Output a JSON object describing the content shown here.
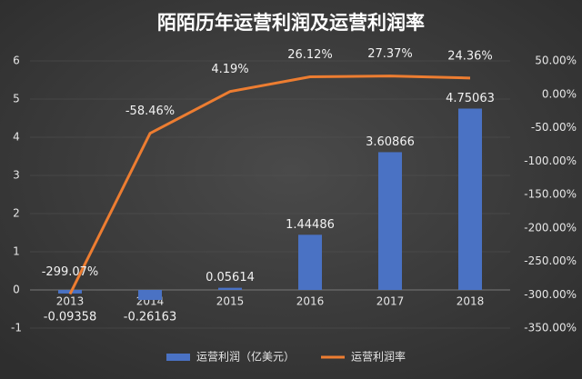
{
  "chart_data": {
    "type": "bar",
    "title": "陌陌历年运营利润及运营利润率",
    "categories": [
      "2013",
      "2014",
      "2015",
      "2016",
      "2017",
      "2018"
    ],
    "series": [
      {
        "name": "运营利润（亿美元）",
        "type": "bar",
        "color": "#4a72c4",
        "values": [
          -0.09358,
          -0.26163,
          0.05614,
          1.44486,
          3.60866,
          4.75063
        ]
      },
      {
        "name": "运营利润率",
        "type": "line",
        "axis": "y2",
        "color": "#ed7d31",
        "values": [
          -299.07,
          -58.46,
          4.19,
          26.12,
          27.37,
          24.36
        ],
        "value_labels": [
          "-299.07%",
          "-58.46%",
          "4.19%",
          "26.12%",
          "27.37%",
          "24.36%"
        ]
      }
    ],
    "ylim": [
      -1,
      6
    ],
    "yticks": [
      -1,
      0,
      1,
      2,
      3,
      4,
      5,
      6
    ],
    "y2lim": [
      -350,
      50
    ],
    "y2ticks": [
      {
        "value": -350,
        "label": "-350.00%"
      },
      {
        "value": -300,
        "label": "-300.00%"
      },
      {
        "value": -250,
        "label": "-250.00%"
      },
      {
        "value": -200,
        "label": "-200.00%"
      },
      {
        "value": -150,
        "label": "-150.00%"
      },
      {
        "value": -100,
        "label": "-100.00%"
      },
      {
        "value": -50,
        "label": "-50.00%"
      },
      {
        "value": 0,
        "label": "0.00%"
      },
      {
        "value": 50,
        "label": "50.00%"
      }
    ],
    "grid": true,
    "legend": "bottom"
  }
}
